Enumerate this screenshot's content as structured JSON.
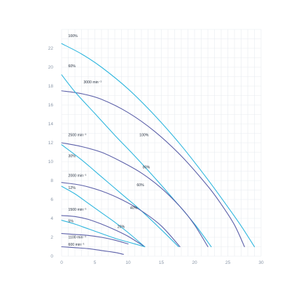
{
  "chart_data": {
    "type": "line",
    "title": "",
    "xlabel": "",
    "ylabel": "",
    "xlim": [
      0,
      30
    ],
    "ylim": [
      0,
      24
    ],
    "x_ticks": [
      "0",
      "5",
      "10",
      "15",
      "20",
      "25",
      "30"
    ],
    "y_ticks": [
      "0",
      "2",
      "4",
      "6",
      "8",
      "10",
      "12",
      "14",
      "16",
      "18",
      "20",
      "22"
    ],
    "grid": true,
    "colors": {
      "speed_curve": "#5b5fa8",
      "blade_curve": "#2eb6de"
    },
    "series": [
      {
        "kind": "blade",
        "x": [
          0,
          3,
          6,
          10,
          14,
          18,
          22,
          25,
          27,
          29
        ],
        "y": [
          22.5,
          21.4,
          20.0,
          17.7,
          14.9,
          11.7,
          8.1,
          5.2,
          3.2,
          1.0
        ]
      },
      {
        "kind": "speed",
        "x": [
          0,
          3,
          6,
          10,
          14,
          18,
          22,
          24,
          26,
          27.5
        ],
        "y": [
          17.5,
          17.2,
          16.6,
          15.2,
          13.2,
          10.6,
          7.4,
          5.5,
          3.3,
          1.0
        ]
      },
      {
        "kind": "blade",
        "x": [
          0,
          2,
          5,
          8,
          11,
          14,
          17,
          20,
          22.5
        ],
        "y": [
          19.2,
          17.4,
          15.1,
          12.8,
          10.6,
          8.3,
          5.9,
          3.4,
          1.0
        ]
      },
      {
        "kind": "speed",
        "x": [
          0,
          3,
          6,
          9,
          12,
          15,
          18,
          20,
          22
        ],
        "y": [
          12.0,
          11.6,
          11.0,
          10.0,
          8.8,
          7.2,
          5.1,
          3.3,
          1.0
        ]
      },
      {
        "kind": "blade",
        "x": [
          0,
          3,
          6,
          9,
          12,
          15,
          17.6
        ],
        "y": [
          11.8,
          10.2,
          8.4,
          6.6,
          4.8,
          2.8,
          1.0
        ]
      },
      {
        "kind": "speed",
        "x": [
          0,
          3,
          6,
          9,
          12,
          15,
          17.8
        ],
        "y": [
          7.8,
          7.5,
          6.9,
          6.0,
          4.8,
          3.2,
          1.0
        ]
      },
      {
        "kind": "blade",
        "x": [
          0,
          2,
          4,
          6,
          8,
          10,
          12.5
        ],
        "y": [
          7.4,
          6.6,
          5.6,
          4.6,
          3.6,
          2.5,
          1.0
        ]
      },
      {
        "kind": "speed",
        "x": [
          0,
          2,
          4,
          6,
          8,
          10,
          12.5
        ],
        "y": [
          4.3,
          4.2,
          3.9,
          3.4,
          2.8,
          2.1,
          1.0
        ]
      },
      {
        "kind": "blade",
        "x": [
          0,
          2,
          4,
          6,
          8,
          10,
          12.5
        ],
        "y": [
          3.8,
          3.4,
          2.9,
          2.4,
          1.9,
          1.5,
          1.0
        ]
      },
      {
        "kind": "speed",
        "x": [
          0,
          2,
          4,
          6,
          8,
          10
        ],
        "y": [
          2.4,
          2.3,
          2.2,
          2.0,
          1.7,
          1.3
        ]
      },
      {
        "kind": "speed",
        "x": [
          0,
          2,
          4,
          6,
          8,
          9.3
        ],
        "y": [
          1.0,
          0.9,
          0.8,
          0.6,
          0.4,
          0.2
        ]
      }
    ],
    "annotations": [
      {
        "text": "100%",
        "x": 1.0,
        "y": 23.2
      },
      {
        "text": "60%",
        "x": 1.0,
        "y": 20.0
      },
      {
        "text": "3000 min⁻¹",
        "x": 3.3,
        "y": 18.3
      },
      {
        "text": "2500 min⁻¹",
        "x": 1.0,
        "y": 12.7
      },
      {
        "text": "100%",
        "x": 11.7,
        "y": 12.7
      },
      {
        "text": "30%",
        "x": 1.0,
        "y": 10.5
      },
      {
        "text": "80%",
        "x": 12.2,
        "y": 9.3
      },
      {
        "text": "2000 min⁻¹",
        "x": 1.0,
        "y": 8.4
      },
      {
        "text": "60%",
        "x": 11.3,
        "y": 7.4
      },
      {
        "text": "12%",
        "x": 1.0,
        "y": 7.1
      },
      {
        "text": "40%",
        "x": 10.3,
        "y": 5.0
      },
      {
        "text": "1500 min⁻¹",
        "x": 1.0,
        "y": 4.8
      },
      {
        "text": "5%",
        "x": 1.0,
        "y": 3.6
      },
      {
        "text": "20%",
        "x": 8.4,
        "y": 3.0
      },
      {
        "text": "1100 min⁻¹",
        "x": 1.0,
        "y": 1.9
      },
      {
        "text": "600 min⁻¹",
        "x": 1.0,
        "y": 1.1
      }
    ]
  }
}
